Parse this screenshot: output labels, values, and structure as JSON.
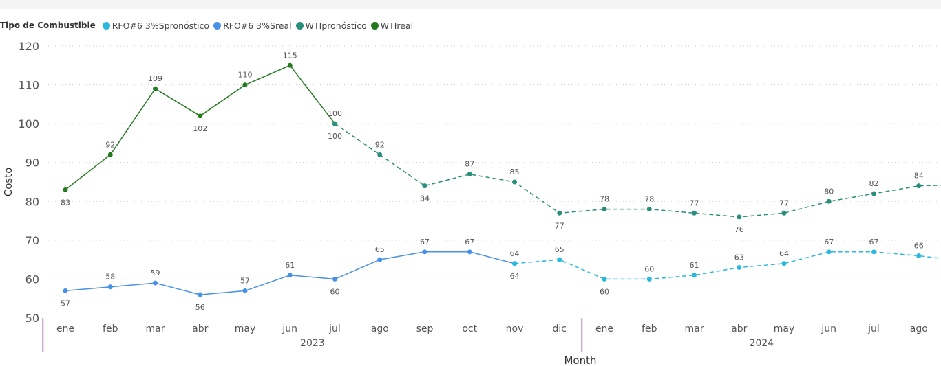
{
  "legend": {
    "title": "Tipo de Combustible",
    "items": [
      {
        "label": "RFO#6 3%Spronóstico",
        "color": "#29b8e0"
      },
      {
        "label": "RFO#6 3%Sreal",
        "color": "#4891e8"
      },
      {
        "label": "WTIpronóstico",
        "color": "#2a8f7a"
      },
      {
        "label": "WTIreal",
        "color": "#227a1e"
      }
    ]
  },
  "chart_data": {
    "type": "line",
    "ylabel": "Costo",
    "xlabel": "Month",
    "ylim": [
      50,
      120
    ],
    "yticks": [
      50,
      60,
      70,
      80,
      90,
      100,
      110,
      120
    ],
    "grid": "horizontal dotted",
    "categories": [
      "ene",
      "feb",
      "mar",
      "abr",
      "may",
      "jun",
      "jul",
      "ago",
      "sep",
      "oct",
      "nov",
      "dic",
      "ene",
      "feb",
      "mar",
      "abr",
      "may",
      "jun",
      "jul",
      "ago"
    ],
    "years": [
      {
        "label": "2023",
        "start": 0,
        "end": 11
      },
      {
        "label": "2024",
        "start": 12,
        "end": 19
      }
    ],
    "series": [
      {
        "name": "WTIreal",
        "color": "#227a1e",
        "dashed": false,
        "points": [
          [
            0,
            83
          ],
          [
            1,
            92
          ],
          [
            2,
            109
          ],
          [
            3,
            102
          ],
          [
            4,
            110
          ],
          [
            5,
            115
          ],
          [
            6,
            100
          ]
        ],
        "labels": [
          "83",
          "92",
          "109",
          "102",
          "110",
          "115",
          "100"
        ],
        "label_pos": [
          "below",
          "above",
          "above",
          "below",
          "above",
          "above",
          "above"
        ]
      },
      {
        "name": "WTIpronóstico",
        "color": "#2a8f7a",
        "dashed": true,
        "points": [
          [
            6,
            100
          ],
          [
            7,
            92
          ],
          [
            8,
            84
          ],
          [
            9,
            87
          ],
          [
            10,
            85
          ],
          [
            11,
            77
          ],
          [
            12,
            78
          ],
          [
            13,
            78
          ],
          [
            14,
            77
          ],
          [
            15,
            76
          ],
          [
            16,
            77
          ],
          [
            17,
            80
          ],
          [
            18,
            82
          ],
          [
            19,
            84
          ],
          [
            20.5,
            84.5
          ]
        ],
        "labels": [
          "100",
          "92",
          "84",
          "87",
          "85",
          "77",
          "78",
          "78",
          "77",
          "76",
          "77",
          "80",
          "82",
          "84",
          ""
        ],
        "label_pos": [
          "below",
          "above",
          "below",
          "above",
          "above",
          "below",
          "above",
          "above",
          "above",
          "below",
          "above",
          "above",
          "above",
          "above",
          "none"
        ]
      },
      {
        "name": "RFO#6 3%Sreal",
        "color": "#4891e8",
        "dashed": false,
        "points": [
          [
            0,
            57
          ],
          [
            1,
            58
          ],
          [
            2,
            59
          ],
          [
            3,
            56
          ],
          [
            4,
            57
          ],
          [
            5,
            61
          ],
          [
            6,
            60
          ],
          [
            7,
            65
          ],
          [
            8,
            67
          ],
          [
            9,
            67
          ],
          [
            10,
            64
          ]
        ],
        "labels": [
          "57",
          "58",
          "59",
          "56",
          "57",
          "61",
          "60",
          "65",
          "67",
          "67",
          "64"
        ],
        "label_pos": [
          "below",
          "above",
          "above",
          "below",
          "above",
          "above",
          "below",
          "above",
          "above",
          "above",
          "above"
        ]
      },
      {
        "name": "RFO#6 3%Spronóstico",
        "color": "#29b8e0",
        "dashed": true,
        "points": [
          [
            10,
            64
          ],
          [
            11,
            65
          ],
          [
            12,
            60
          ],
          [
            13,
            60
          ],
          [
            14,
            61
          ],
          [
            15,
            63
          ],
          [
            16,
            64
          ],
          [
            17,
            67
          ],
          [
            18,
            67
          ],
          [
            19,
            66
          ],
          [
            20.5,
            64
          ]
        ],
        "labels": [
          "64",
          "65",
          "60",
          "60",
          "61",
          "63",
          "64",
          "67",
          "67",
          "66",
          ""
        ],
        "label_pos": [
          "below",
          "above",
          "below",
          "above",
          "above",
          "above",
          "above",
          "above",
          "above",
          "above",
          "none"
        ]
      }
    ]
  }
}
